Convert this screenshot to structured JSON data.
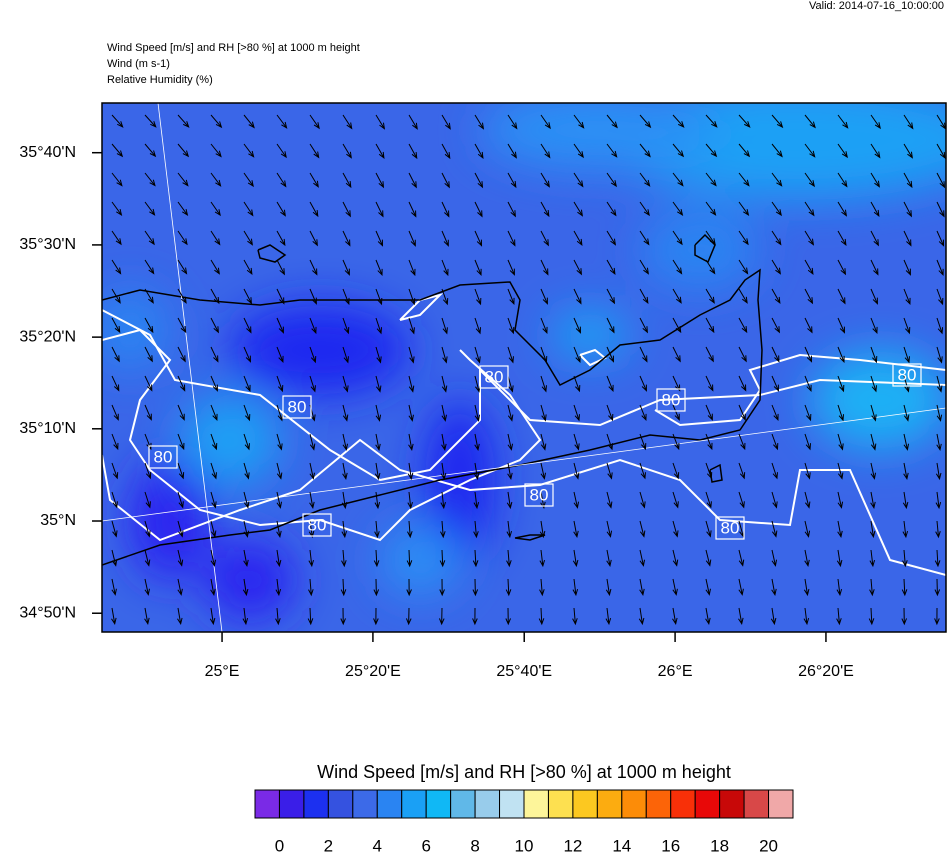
{
  "header": {
    "valid": "Valid: 2014-07-16_10:00:00",
    "title_lines": [
      "Wind Speed [m/s] and RH [>80 %] at 1000 m height",
      "Wind   (m s-1)",
      "Relative Humidity   (%)"
    ]
  },
  "map": {
    "xlim": [
      24.735,
      26.598
    ],
    "ylim": [
      34.799,
      35.757
    ],
    "xticks": [
      {
        "value": 25,
        "label": "25°E"
      },
      {
        "value": 25.333,
        "label": "25°20'E"
      },
      {
        "value": 25.667,
        "label": "25°40'E"
      },
      {
        "value": 26,
        "label": "26°E"
      },
      {
        "value": 26.333,
        "label": "26°20'E"
      }
    ],
    "yticks": [
      {
        "value": 34.833,
        "label": "34°50'N"
      },
      {
        "value": 35,
        "label": "35°N"
      },
      {
        "value": 35.167,
        "label": "35°10'N"
      },
      {
        "value": 35.333,
        "label": "35°20'N"
      },
      {
        "value": 35.5,
        "label": "35°30'N"
      },
      {
        "value": 35.667,
        "label": "35°40'N"
      }
    ],
    "contour_labels": [
      "80",
      "80",
      "80",
      "80",
      "80",
      "80",
      "80",
      "80"
    ]
  },
  "colorbar": {
    "title": "Wind Speed [m/s] and RH [>80 %] at 1000 m height",
    "colors": [
      "#7a2ae6",
      "#3a1ee8",
      "#1c30f0",
      "#3552e0",
      "#3c6ae8",
      "#2a84f2",
      "#1aa0f5",
      "#10b8f5",
      "#60b8e8",
      "#98cceb",
      "#c0e2f2",
      "#fdf59a",
      "#fde050",
      "#fcc820",
      "#fcac10",
      "#fc8c08",
      "#fc6408",
      "#f83008",
      "#e80808",
      "#c80808",
      "#d84848",
      "#f0a8a8"
    ],
    "ticks": [
      0,
      2,
      4,
      6,
      8,
      10,
      12,
      14,
      16,
      18,
      20
    ]
  }
}
